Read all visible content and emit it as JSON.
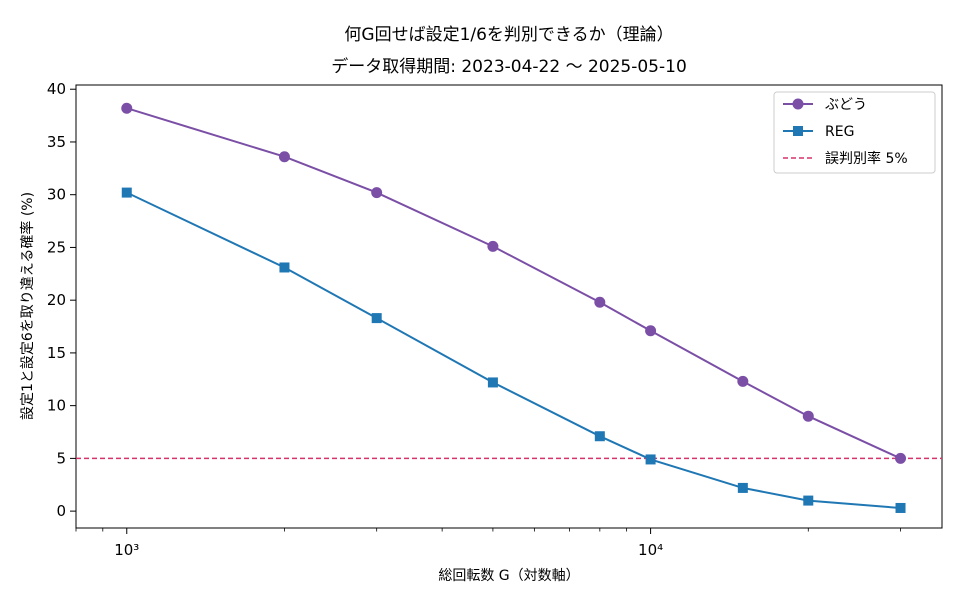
{
  "chart_data": {
    "type": "line",
    "title": "何G回せば設定1/6を判別できるか（理論）",
    "subtitle": "データ取得期間: 2023-04-22 〜 2025-05-10",
    "xlabel": "総回転数 G（対数軸）",
    "ylabel": "設定1と設定6を取り違える確率 (%)",
    "xscale": "log",
    "xlim": [
      800,
      36000
    ],
    "ylim": [
      -1.6,
      40.4
    ],
    "x_ticks": [
      1000,
      10000
    ],
    "x_tick_labels": [
      "10³",
      "10⁴"
    ],
    "y_ticks": [
      0,
      5,
      10,
      15,
      20,
      25,
      30,
      35,
      40
    ],
    "grid": false,
    "legend": "top-right",
    "x": [
      1000,
      2000,
      3000,
      5000,
      8000,
      10000,
      15000,
      20000,
      30000
    ],
    "series": [
      {
        "name": "ぶどう",
        "marker": "circle",
        "color": "#7b4fa6",
        "values": [
          38.2,
          33.6,
          30.2,
          25.1,
          19.8,
          17.1,
          12.3,
          9.0,
          5.0
        ]
      },
      {
        "name": "REG",
        "marker": "square",
        "color": "#1f77b4",
        "values": [
          30.2,
          23.1,
          18.3,
          12.2,
          7.1,
          4.9,
          2.2,
          1.0,
          0.3
        ]
      }
    ],
    "reference_line": {
      "name": "誤判別率 5%",
      "y": 5,
      "color": "#d6336c",
      "style": "dashed"
    }
  }
}
